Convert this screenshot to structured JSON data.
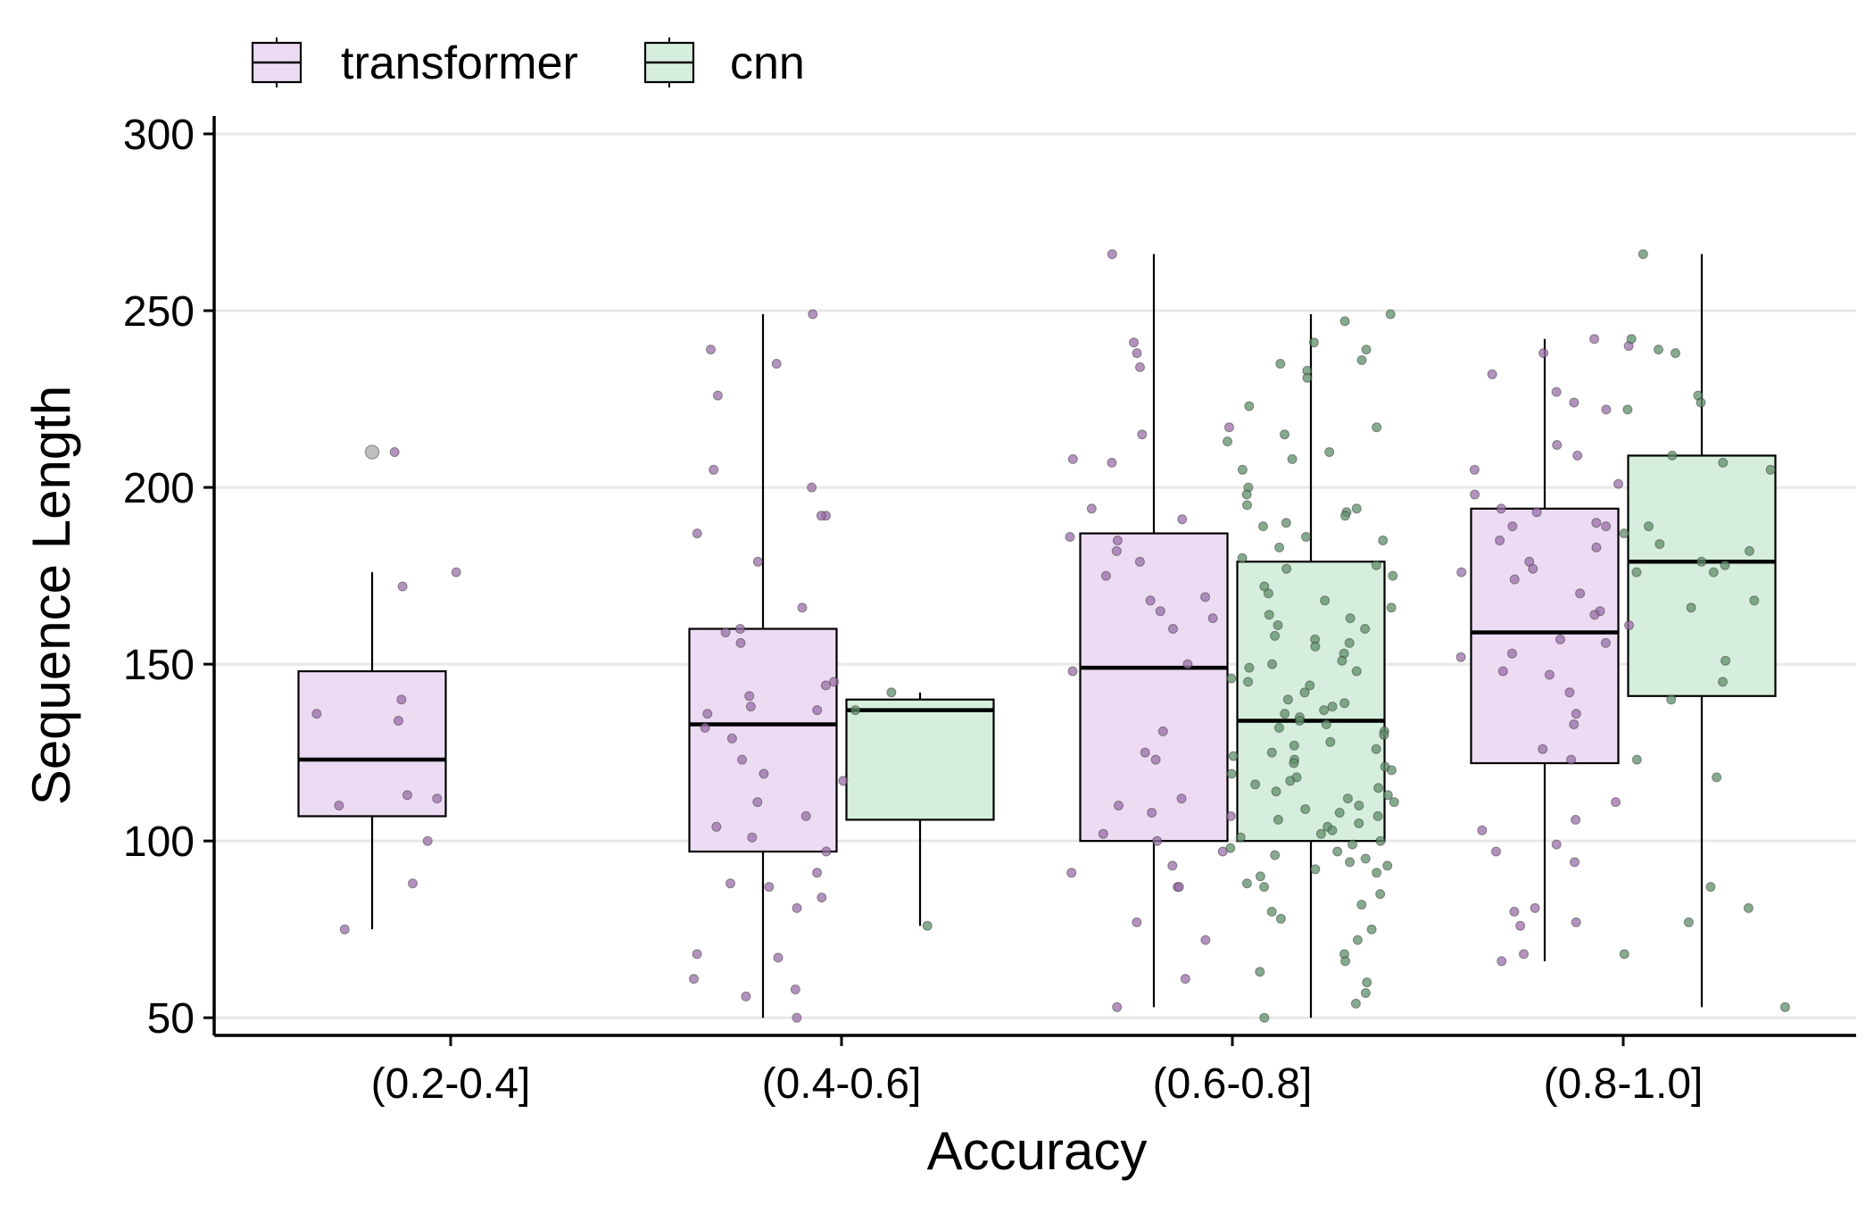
{
  "chart_data": {
    "type": "boxplot",
    "title": "",
    "xlabel": "Accuracy",
    "ylabel": "Sequence Length",
    "categories": [
      "(0.2-0.4]",
      "(0.4-0.6]",
      "(0.6-0.8]",
      "(0.8-1.0]"
    ],
    "ylim": [
      45,
      300
    ],
    "yticks": [
      50,
      100,
      150,
      200,
      250,
      300
    ],
    "grid": "horizontal",
    "legend_position": "top-left",
    "colors": {
      "transformer_fill": "#ecdbf2",
      "transformer_point": "#9a6ea8",
      "cnn_fill": "#d6eedd",
      "cnn_point": "#5e8e68",
      "outlier": "#bfbfbf",
      "grid": "#e8e8e8",
      "axis": "#000000"
    },
    "series": [
      {
        "name": "transformer",
        "boxes": [
          {
            "category": "(0.2-0.4]",
            "min": 75,
            "q1": 107,
            "median": 123,
            "q3": 148,
            "max": 176,
            "outliers": [
              210
            ]
          },
          {
            "category": "(0.4-0.6]",
            "min": 50,
            "q1": 97,
            "median": 133,
            "q3": 160,
            "max": 249,
            "outliers": []
          },
          {
            "category": "(0.6-0.8]",
            "min": 53,
            "q1": 100,
            "median": 149,
            "q3": 187,
            "max": 266,
            "outliers": []
          },
          {
            "category": "(0.8-1.0]",
            "min": 66,
            "q1": 122,
            "median": 159,
            "q3": 194,
            "max": 242,
            "outliers": []
          }
        ],
        "points": [
          [
            0,
            [
              134,
              110,
              210,
              176,
              172,
              140,
              136,
              112,
              113,
              100,
              88,
              75
            ]
          ],
          [
            1,
            [
              249,
              239,
              235,
              226,
              205,
              200,
              192,
              192,
              187,
              179,
              166,
              160,
              159,
              156,
              145,
              144,
              141,
              138,
              137,
              136,
              132,
              129,
              123,
              119,
              117,
              111,
              107,
              104,
              101,
              97,
              91,
              88,
              87,
              84,
              81,
              68,
              67,
              61,
              58,
              56,
              50
            ]
          ],
          [
            2,
            [
              266,
              241,
              238,
              234,
              217,
              215,
              208,
              207,
              194,
              191,
              186,
              185,
              182,
              179,
              175,
              169,
              168,
              165,
              163,
              160,
              150,
              148,
              131,
              125,
              123,
              112,
              110,
              108,
              107,
              102,
              100,
              97,
              93,
              91,
              87,
              87,
              77,
              72,
              61,
              53
            ]
          ],
          [
            3,
            [
              242,
              240,
              238,
              232,
              227,
              224,
              222,
              212,
              209,
              205,
              201,
              198,
              194,
              193,
              190,
              189,
              189,
              185,
              183,
              179,
              177,
              176,
              174,
              170,
              165,
              164,
              161,
              157,
              156,
              153,
              152,
              148,
              147,
              142,
              136,
              133,
              126,
              123,
              111,
              106,
              103,
              99,
              97,
              94,
              81,
              80,
              77,
              76,
              68,
              66
            ]
          ]
        ]
      },
      {
        "name": "cnn",
        "boxes": [
          {
            "category": "(0.4-0.6]",
            "min": 76,
            "q1": 106,
            "median": 137,
            "q3": 140,
            "max": 142,
            "outliers": []
          },
          {
            "category": "(0.6-0.8]",
            "min": 50,
            "q1": 100,
            "median": 134,
            "q3": 179,
            "max": 249,
            "outliers": []
          },
          {
            "category": "(0.8-1.0]",
            "min": 53,
            "q1": 141,
            "median": 179,
            "q3": 209,
            "max": 266,
            "outliers": []
          }
        ],
        "points": [
          [
            1,
            [
              142,
              137,
              76
            ]
          ],
          [
            2,
            [
              249,
              247,
              241,
              239,
              236,
              235,
              233,
              231,
              223,
              217,
              215,
              213,
              210,
              208,
              205,
              200,
              198,
              195,
              194,
              193,
              192,
              190,
              189,
              186,
              185,
              183,
              180,
              178,
              177,
              175,
              172,
              170,
              168,
              166,
              164,
              163,
              161,
              160,
              158,
              157,
              156,
              155,
              153,
              151,
              150,
              149,
              148,
              146,
              145,
              144,
              142,
              140,
              139,
              138,
              137,
              136,
              135,
              134,
              133,
              132,
              131,
              130,
              128,
              127,
              126,
              125,
              124,
              123,
              122,
              121,
              120,
              119,
              118,
              117,
              116,
              115,
              114,
              113,
              112,
              111,
              110,
              109,
              108,
              107,
              106,
              105,
              104,
              103,
              102,
              101,
              100,
              99,
              98,
              97,
              96,
              95,
              94,
              93,
              92,
              91,
              90,
              88,
              87,
              85,
              82,
              80,
              78,
              75,
              72,
              68,
              66,
              63,
              60,
              57,
              54,
              50
            ]
          ],
          [
            3,
            [
              266,
              242,
              239,
              238,
              226,
              224,
              222,
              209,
              207,
              205,
              189,
              187,
              184,
              182,
              179,
              178,
              176,
              176,
              168,
              166,
              151,
              145,
              140,
              123,
              118,
              87,
              81,
              77,
              68,
              53
            ]
          ]
        ]
      }
    ]
  }
}
